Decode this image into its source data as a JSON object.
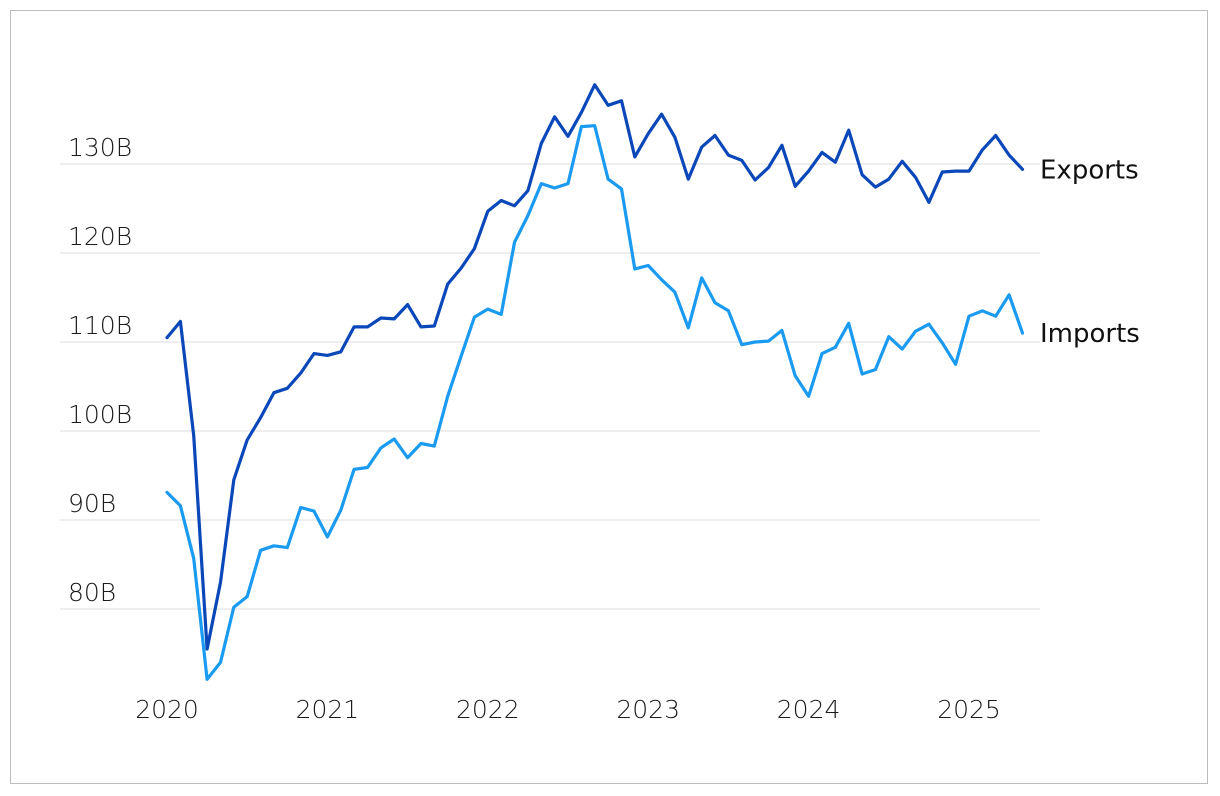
{
  "chart_data": {
    "type": "line",
    "title": "",
    "xlabel": "",
    "ylabel": "",
    "ylim": [
      70,
      140
    ],
    "y_ticks": [
      {
        "value": 80,
        "label": "80B"
      },
      {
        "value": 90,
        "label": "90B"
      },
      {
        "value": 100,
        "label": "100B"
      },
      {
        "value": 110,
        "label": "110B"
      },
      {
        "value": 120,
        "label": "120B"
      },
      {
        "value": 130,
        "label": "130B"
      }
    ],
    "x_ticks": [
      {
        "value": 2020,
        "label": "2020"
      },
      {
        "value": 2021,
        "label": "2021"
      },
      {
        "value": 2022,
        "label": "2022"
      },
      {
        "value": 2023,
        "label": "2023"
      },
      {
        "value": 2024,
        "label": "2024"
      },
      {
        "value": 2025,
        "label": "2025"
      }
    ],
    "x_start": 2020.0,
    "x_step": 0.0833333,
    "grid": "horizontal",
    "legend": "end-of-line labels",
    "series": [
      {
        "name": "Exports",
        "color": "#0a47b8",
        "values": [
          110.5,
          112.3,
          99.5,
          75.5,
          83.0,
          94.5,
          99.0,
          101.5,
          104.3,
          104.8,
          106.5,
          108.7,
          108.5,
          108.9,
          111.7,
          111.7,
          112.7,
          112.6,
          114.2,
          111.7,
          111.8,
          116.5,
          118.3,
          120.5,
          124.7,
          125.9,
          125.3,
          127.0,
          132.3,
          135.3,
          133.1,
          135.8,
          138.9,
          136.6,
          137.1,
          130.8,
          133.4,
          135.6,
          133.0,
          128.3,
          131.9,
          133.2,
          131.0,
          130.4,
          128.2,
          129.6,
          132.1,
          127.5,
          129.2,
          131.3,
          130.2,
          133.8,
          128.8,
          127.4,
          128.3,
          130.3,
          128.5,
          125.7,
          129.1,
          129.2,
          129.2,
          131.6,
          133.2,
          131.0,
          129.4
        ]
      },
      {
        "name": "Imports",
        "color": "#1a9af0",
        "values": [
          93.1,
          91.6,
          85.7,
          72.1,
          74.0,
          80.2,
          81.4,
          86.6,
          87.1,
          86.9,
          91.4,
          91.0,
          88.1,
          91.1,
          95.7,
          95.9,
          98.1,
          99.1,
          97.0,
          98.6,
          98.3,
          103.9,
          108.4,
          112.8,
          113.7,
          113.1,
          121.2,
          124.2,
          127.8,
          127.3,
          127.8,
          134.2,
          134.3,
          128.3,
          127.2,
          118.2,
          118.6,
          117.0,
          115.6,
          111.6,
          117.2,
          114.4,
          113.5,
          109.7,
          110.0,
          110.1,
          111.3,
          106.2,
          103.9,
          108.7,
          109.4,
          112.1,
          106.4,
          106.9,
          110.6,
          109.2,
          111.2,
          112.0,
          109.9,
          107.5,
          112.9,
          113.5,
          112.9,
          115.3,
          111.0
        ]
      }
    ]
  }
}
